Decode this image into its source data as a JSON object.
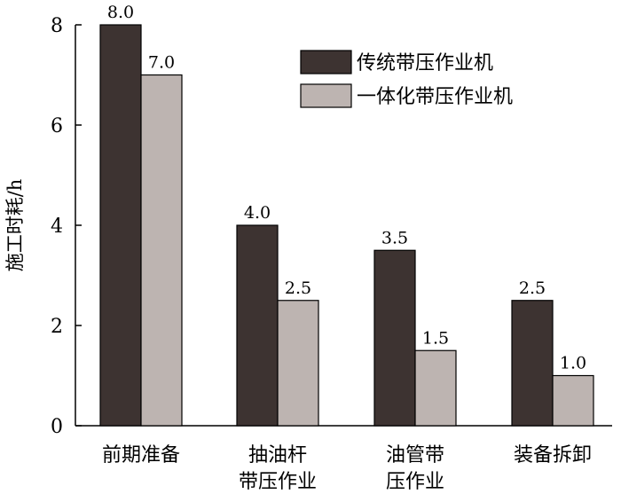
{
  "chart_data": {
    "type": "bar",
    "categories": [
      [
        "前期准备"
      ],
      [
        "抽油杆",
        "带压作业"
      ],
      [
        "油管带",
        "压作业"
      ],
      [
        "装备拆卸"
      ]
    ],
    "series": [
      {
        "name": "传统带压作业机",
        "values": [
          8.0,
          4.0,
          3.5,
          2.5
        ],
        "value_labels": [
          "8.0",
          "4.0",
          "3.5",
          "2.5"
        ],
        "color": "#3d3331"
      },
      {
        "name": "一体化带压作业机",
        "values": [
          7.0,
          2.5,
          1.5,
          1.0
        ],
        "value_labels": [
          "7.0",
          "2.5",
          "1.5",
          "1.0"
        ],
        "color": "#bdb4b1"
      }
    ],
    "ylabel": "施工时耗/h",
    "xlabel": "",
    "ylim": [
      0,
      8
    ],
    "yticks": [
      0,
      2,
      4,
      6,
      8
    ],
    "legend_position": "top-right",
    "grid": false
  }
}
